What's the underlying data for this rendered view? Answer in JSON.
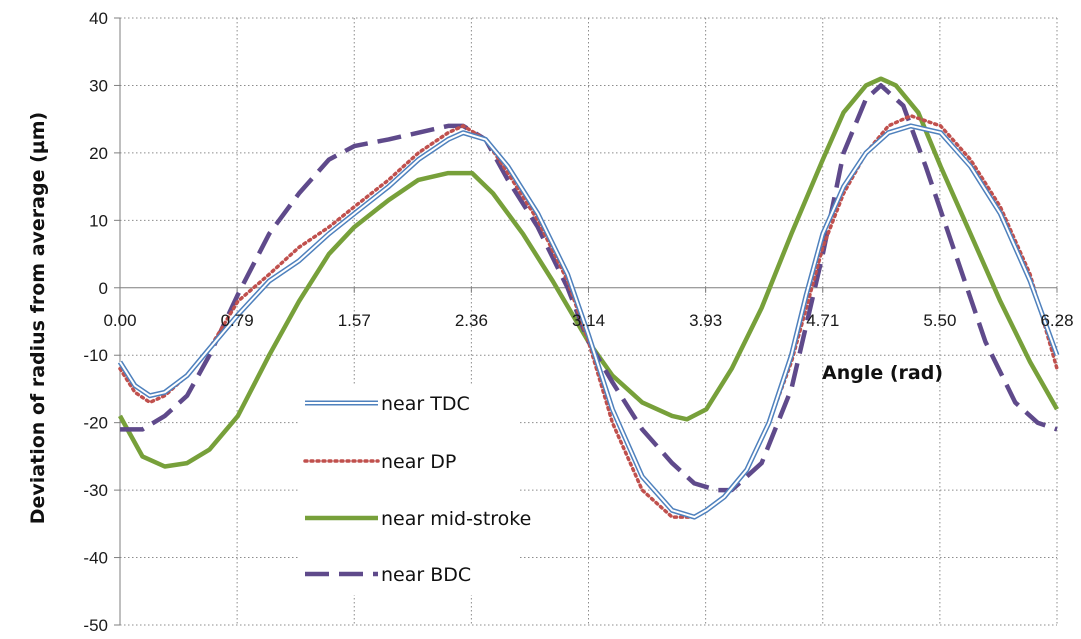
{
  "chart_data": {
    "type": "line",
    "xlabel": "Angle (rad)",
    "ylabel": "Deviation of radius from average (µm)",
    "xlim": [
      0,
      6.28
    ],
    "ylim": [
      -50,
      40
    ],
    "x_ticks": [
      "0.00",
      "0.79",
      "1.57",
      "2.36",
      "3.14",
      "3.93",
      "4.71",
      "5.50",
      "6.28"
    ],
    "y_ticks": [
      "40",
      "30",
      "20",
      "10",
      "0",
      "-10",
      "-20",
      "-30",
      "-40",
      "-50"
    ],
    "grid": "dotted",
    "legend_position": "lower-left inside",
    "series": [
      {
        "name": "near TDC",
        "color": "#4f81bd",
        "style": "double-line",
        "x": [
          0.0,
          0.1,
          0.2,
          0.3,
          0.45,
          0.6,
          0.79,
          1.0,
          1.2,
          1.4,
          1.57,
          1.8,
          2.0,
          2.2,
          2.3,
          2.45,
          2.6,
          2.8,
          3.0,
          3.14,
          3.3,
          3.5,
          3.7,
          3.85,
          3.93,
          4.05,
          4.2,
          4.35,
          4.5,
          4.6,
          4.71,
          4.85,
          5.0,
          5.15,
          5.3,
          5.5,
          5.7,
          5.9,
          6.1,
          6.28
        ],
        "y": [
          -11,
          -14.5,
          -16,
          -15.5,
          -13,
          -9,
          -4,
          1,
          4,
          8,
          11,
          15,
          19,
          22,
          23,
          22,
          18,
          11,
          2,
          -7,
          -18,
          -28,
          -33,
          -34,
          -33,
          -31,
          -27,
          -20,
          -10,
          -1,
          8,
          15,
          20,
          23,
          24,
          23,
          18,
          11,
          1,
          -10
        ]
      },
      {
        "name": "near DP",
        "color": "#c0504d",
        "style": "dotted",
        "x": [
          0.0,
          0.1,
          0.2,
          0.3,
          0.45,
          0.6,
          0.79,
          1.0,
          1.2,
          1.4,
          1.57,
          1.8,
          2.0,
          2.2,
          2.3,
          2.45,
          2.6,
          2.8,
          3.0,
          3.14,
          3.3,
          3.5,
          3.7,
          3.85,
          3.93,
          4.05,
          4.2,
          4.35,
          4.5,
          4.6,
          4.71,
          4.85,
          5.0,
          5.15,
          5.3,
          5.5,
          5.7,
          5.9,
          6.1,
          6.28
        ],
        "y": [
          -12,
          -15.5,
          -17,
          -16,
          -13,
          -9,
          -2,
          2,
          6,
          9,
          12,
          16,
          20,
          23,
          24,
          22,
          17,
          10,
          1,
          -8,
          -20,
          -30,
          -34,
          -34,
          -33,
          -31,
          -27,
          -20,
          -11,
          -3,
          6,
          14,
          20,
          24,
          25.5,
          24,
          19,
          12,
          2,
          -12
        ]
      },
      {
        "name": "near mid-stroke",
        "color": "#77a03a",
        "style": "solid",
        "x": [
          0.0,
          0.15,
          0.3,
          0.45,
          0.6,
          0.79,
          1.0,
          1.2,
          1.4,
          1.57,
          1.8,
          2.0,
          2.2,
          2.36,
          2.5,
          2.7,
          2.9,
          3.14,
          3.3,
          3.5,
          3.7,
          3.8,
          3.93,
          4.1,
          4.3,
          4.5,
          4.71,
          4.85,
          5.0,
          5.1,
          5.2,
          5.35,
          5.5,
          5.7,
          5.9,
          6.1,
          6.28
        ],
        "y": [
          -19,
          -25,
          -26.5,
          -26,
          -24,
          -19,
          -10,
          -2,
          5,
          9,
          13,
          16,
          17,
          17,
          14,
          8,
          1,
          -8,
          -13,
          -17,
          -19,
          -19.5,
          -18,
          -12,
          -3,
          8,
          19,
          26,
          30,
          31,
          30,
          26,
          18,
          8,
          -2,
          -11,
          -18
        ]
      },
      {
        "name": "near BDC",
        "color": "#5f4a8b",
        "style": "dashed",
        "x": [
          0.0,
          0.15,
          0.3,
          0.45,
          0.6,
          0.79,
          1.0,
          1.2,
          1.4,
          1.57,
          1.8,
          2.0,
          2.2,
          2.3,
          2.45,
          2.6,
          2.8,
          3.0,
          3.14,
          3.3,
          3.5,
          3.7,
          3.85,
          4.0,
          4.1,
          4.3,
          4.5,
          4.71,
          4.85,
          5.0,
          5.1,
          5.25,
          5.4,
          5.6,
          5.8,
          6.0,
          6.15,
          6.28
        ],
        "y": [
          -21,
          -21,
          -19,
          -16,
          -10,
          -1,
          8,
          14,
          19,
          21,
          22,
          23,
          24,
          24,
          22,
          16,
          9,
          0,
          -8,
          -14,
          -21,
          -26,
          -29,
          -30,
          -30,
          -26,
          -15,
          5,
          20,
          28,
          30,
          27,
          18,
          5,
          -8,
          -17,
          -20,
          -21
        ]
      }
    ]
  }
}
